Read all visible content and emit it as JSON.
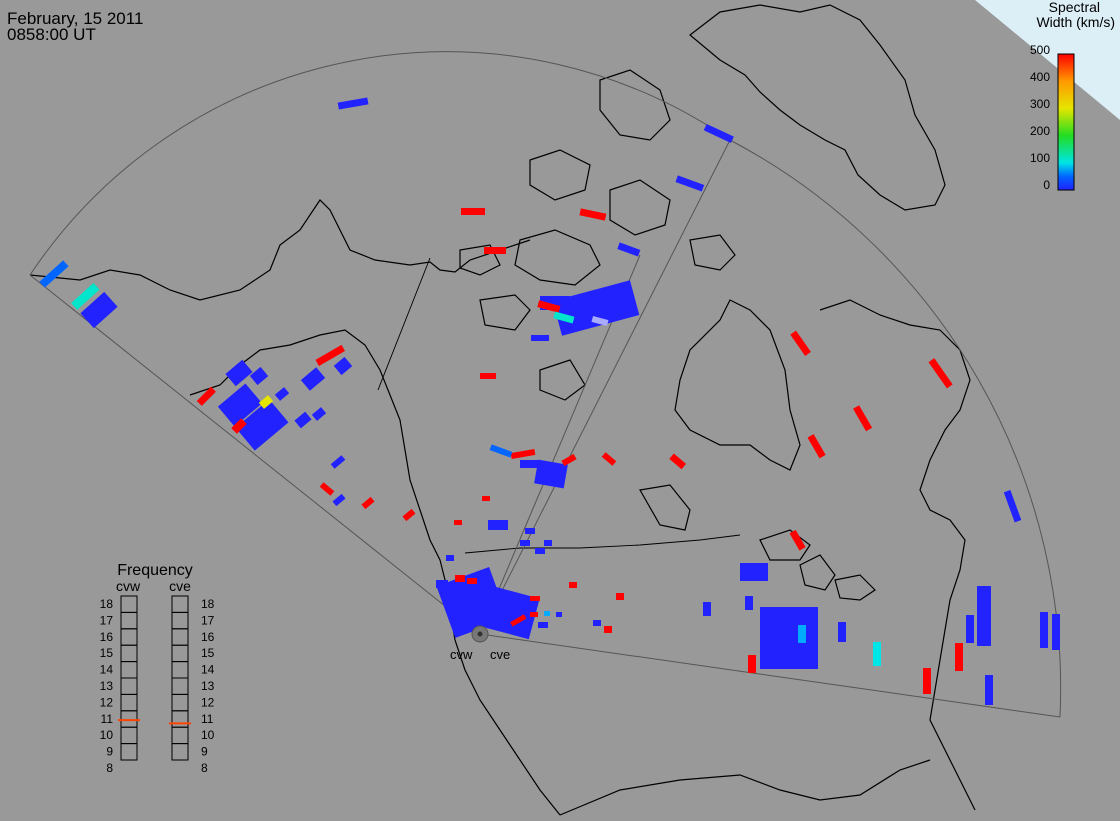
{
  "header": {
    "date": "February, 15 2011",
    "time": "0858:00 UT"
  },
  "legend": {
    "title_line1": "Spectral",
    "title_line2": "Width (km/s)",
    "ticks": [
      "500",
      "400",
      "300",
      "200",
      "100",
      "0"
    ],
    "range": [
      0,
      500
    ],
    "colors": [
      "#ff0000",
      "#ff9900",
      "#e5e500",
      "#22dd22",
      "#00e5e5",
      "#0066ff",
      "#2222ff"
    ]
  },
  "radars": [
    {
      "name": "cvw",
      "freq_mhz": 10.8
    },
    {
      "name": "cve",
      "freq_mhz": 10.6
    }
  ],
  "frequency_panel": {
    "title": "Frequency",
    "scale": [
      "18",
      "17",
      "16",
      "15",
      "14",
      "13",
      "12",
      "11",
      "10",
      "9",
      "8"
    ],
    "range_mhz": [
      8,
      18
    ],
    "marker_color": "#ff4400"
  },
  "colors": {
    "background": "#999999",
    "coastline": "#000000",
    "fov_outline": "#555555",
    "max_color": "#ff0000",
    "low_color": "#2222ff"
  }
}
